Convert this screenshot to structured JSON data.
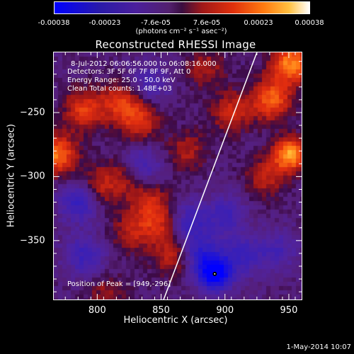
{
  "colorbar": {
    "ticks": [
      "-0.00038",
      "-0.00023",
      "-7.6e-05",
      "7.6e-05",
      "0.00023",
      "0.00038"
    ],
    "units": "(photons cm⁻² s⁻¹ asec⁻²)"
  },
  "title": "Reconstructed RHESSI Image",
  "info": {
    "time_range": "8-Jul-2012 06:06:56.000 to 06:08:16.000",
    "detectors": "Detectors: 3F 5F 6F 7F 8F 9F, Att 0",
    "energy_range": "Energy Range: 25.0 - 50.0 keV",
    "algorithm": "Clean    Total counts: 1.48E+03",
    "peak": "Position of Peak = [949,-296]"
  },
  "timestamp": "1-May-2014 10:07",
  "chart_data": {
    "type": "heatmap",
    "title": "Reconstructed RHESSI Image",
    "xlabel": "Heliocentric X (arcsec)",
    "ylabel": "Heliocentric Y (arcsec)",
    "xlim": [
      766,
      960
    ],
    "ylim": [
      -396,
      -203
    ],
    "xticks": [
      800,
      850,
      900,
      950
    ],
    "yticks": [
      -250,
      -300,
      -350
    ],
    "xtick_labels": [
      "800",
      "850",
      "900",
      "950"
    ],
    "ytick_labels": [
      "−250",
      "−300",
      "−350"
    ],
    "colorbar_range": [
      -0.00038,
      0.00038
    ],
    "limb_line": [
      [
        852,
        -396
      ],
      [
        925,
        -203
      ]
    ],
    "peak_position": [
      949,
      -296
    ],
    "min_marker": [
      892,
      -376
    ],
    "bright_sources": [
      {
        "x": 952,
        "y": -212,
        "v": 0.0003
      },
      {
        "x": 936,
        "y": -240,
        "v": 0.00025
      },
      {
        "x": 951,
        "y": -283,
        "v": 0.00033
      },
      {
        "x": 768,
        "y": -283,
        "v": 0.00028
      },
      {
        "x": 790,
        "y": -248,
        "v": 0.0002
      },
      {
        "x": 818,
        "y": -242,
        "v": 0.00018
      },
      {
        "x": 833,
        "y": -256,
        "v": 0.00018
      },
      {
        "x": 905,
        "y": -250,
        "v": 0.00016
      },
      {
        "x": 840,
        "y": -320,
        "v": 0.00014
      },
      {
        "x": 823,
        "y": -300,
        "v": 0.00012
      },
      {
        "x": 850,
        "y": -337,
        "v": 0.00016
      },
      {
        "x": 827,
        "y": -344,
        "v": 0.00013
      },
      {
        "x": 802,
        "y": -308,
        "v": 0.00014
      },
      {
        "x": 860,
        "y": -362,
        "v": 0.00015
      },
      {
        "x": 870,
        "y": -280,
        "v": 0.00012
      },
      {
        "x": 808,
        "y": -392,
        "v": 0.0001
      },
      {
        "x": 885,
        "y": -215,
        "v": 0.00012
      },
      {
        "x": 932,
        "y": -300,
        "v": 0.00014
      }
    ],
    "dark_sources": [
      {
        "x": 892,
        "y": -376,
        "v": -0.00038
      },
      {
        "x": 786,
        "y": -320,
        "v": -0.00018
      },
      {
        "x": 790,
        "y": -362,
        "v": -0.00015
      },
      {
        "x": 835,
        "y": -292,
        "v": -0.00015
      },
      {
        "x": 870,
        "y": -336,
        "v": -0.00016
      },
      {
        "x": 880,
        "y": -360,
        "v": -0.00018
      },
      {
        "x": 840,
        "y": -228,
        "v": -0.00012
      },
      {
        "x": 900,
        "y": -330,
        "v": -0.00014
      },
      {
        "x": 912,
        "y": -362,
        "v": -0.00015
      },
      {
        "x": 940,
        "y": -358,
        "v": -0.00012
      }
    ]
  }
}
